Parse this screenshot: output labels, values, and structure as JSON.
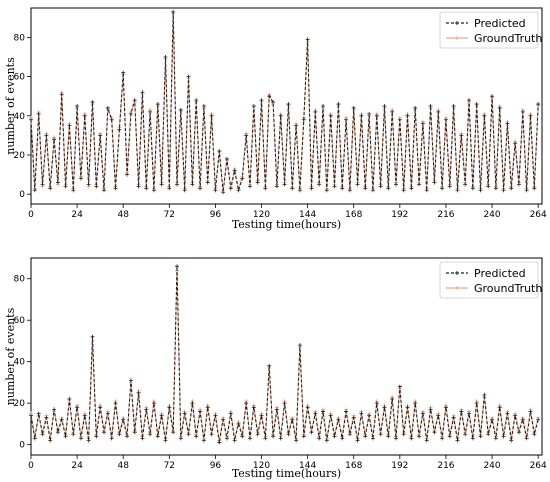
{
  "chart_data": [
    {
      "type": "line",
      "xlabel": "Testing time(hours)",
      "ylabel": "number of events",
      "xlim": [
        0,
        266
      ],
      "ylim": [
        -5,
        95
      ],
      "xticks": [
        0,
        24,
        48,
        72,
        96,
        120,
        144,
        168,
        192,
        216,
        240,
        264
      ],
      "yticks": [
        0,
        20,
        40,
        60,
        80
      ],
      "grid": false,
      "legend": "top-right",
      "series": [
        {
          "name": "Predicted",
          "color": "#222222",
          "style": "dashed-plus",
          "x": [
            0,
            2,
            4,
            6,
            8,
            10,
            12,
            14,
            16,
            18,
            20,
            22,
            24,
            26,
            28,
            30,
            32,
            34,
            36,
            38,
            40,
            42,
            44,
            46,
            48,
            50,
            52,
            54,
            56,
            58,
            60,
            62,
            64,
            66,
            68,
            70,
            72,
            74,
            76,
            78,
            80,
            82,
            84,
            86,
            88,
            90,
            92,
            94,
            96,
            98,
            100,
            102,
            104,
            106,
            108,
            110,
            112,
            114,
            116,
            118,
            120,
            122,
            124,
            126,
            128,
            130,
            132,
            134,
            136,
            138,
            140,
            142,
            144,
            146,
            148,
            150,
            152,
            154,
            156,
            158,
            160,
            162,
            164,
            166,
            168,
            170,
            172,
            174,
            176,
            178,
            180,
            182,
            184,
            186,
            188,
            190,
            192,
            194,
            196,
            198,
            200,
            202,
            204,
            206,
            208,
            210,
            212,
            214,
            216,
            218,
            220,
            222,
            224,
            226,
            228,
            230,
            232,
            234,
            236,
            238,
            240,
            242,
            244,
            246,
            248,
            250,
            252,
            254,
            256,
            258,
            260,
            262,
            264
          ],
          "values": [
            38,
            2,
            41,
            5,
            30,
            3,
            28,
            6,
            51,
            4,
            35,
            2,
            45,
            8,
            40,
            5,
            47,
            4,
            30,
            2,
            44,
            38,
            3,
            33,
            62,
            10,
            41,
            48,
            4,
            52,
            3,
            42,
            2,
            46,
            5,
            70,
            3,
            93,
            5,
            43,
            2,
            60,
            5,
            48,
            3,
            45,
            6,
            40,
            2,
            22,
            1,
            18,
            3,
            12,
            2,
            8,
            30,
            4,
            45,
            6,
            48,
            3,
            50,
            47,
            4,
            40,
            5,
            46,
            3,
            35,
            2,
            38,
            79,
            3,
            42,
            5,
            45,
            2,
            40,
            4,
            46,
            3,
            38,
            2,
            44,
            5,
            40,
            3,
            41,
            2,
            40,
            4,
            45,
            3,
            42,
            5,
            38,
            2,
            40,
            3,
            44,
            5,
            36,
            2,
            45,
            6,
            42,
            3,
            38,
            4,
            45,
            2,
            30,
            5,
            48,
            3,
            46,
            2,
            40,
            4,
            50,
            3,
            44,
            2,
            36,
            3,
            26,
            5,
            42,
            2,
            40,
            3,
            46
          ]
        },
        {
          "name": "GroundTruth",
          "color": "#f4a582",
          "style": "solid-plus",
          "x": [
            0,
            2,
            4,
            6,
            8,
            10,
            12,
            14,
            16,
            18,
            20,
            22,
            24,
            26,
            28,
            30,
            32,
            34,
            36,
            38,
            40,
            42,
            44,
            46,
            48,
            50,
            52,
            54,
            56,
            58,
            60,
            62,
            64,
            66,
            68,
            70,
            72,
            74,
            76,
            78,
            80,
            82,
            84,
            86,
            88,
            90,
            92,
            94,
            96,
            98,
            100,
            102,
            104,
            106,
            108,
            110,
            112,
            114,
            116,
            118,
            120,
            122,
            124,
            126,
            128,
            130,
            132,
            134,
            136,
            138,
            140,
            142,
            144,
            146,
            148,
            150,
            152,
            154,
            156,
            158,
            160,
            162,
            164,
            166,
            168,
            170,
            172,
            174,
            176,
            178,
            180,
            182,
            184,
            186,
            188,
            190,
            192,
            194,
            196,
            198,
            200,
            202,
            204,
            206,
            208,
            210,
            212,
            214,
            216,
            218,
            220,
            222,
            224,
            226,
            228,
            230,
            232,
            234,
            236,
            238,
            240,
            242,
            244,
            246,
            248,
            250,
            252,
            254,
            256,
            258,
            260,
            262,
            264
          ],
          "values": [
            39,
            3,
            42,
            4,
            31,
            4,
            29,
            5,
            52,
            5,
            36,
            3,
            44,
            9,
            41,
            4,
            46,
            5,
            31,
            3,
            43,
            39,
            4,
            34,
            61,
            11,
            42,
            47,
            5,
            51,
            4,
            43,
            3,
            45,
            6,
            69,
            4,
            92,
            6,
            42,
            3,
            59,
            6,
            47,
            4,
            44,
            7,
            41,
            3,
            21,
            2,
            17,
            4,
            13,
            3,
            9,
            31,
            5,
            44,
            7,
            47,
            4,
            51,
            46,
            5,
            41,
            6,
            45,
            4,
            36,
            3,
            39,
            78,
            4,
            43,
            6,
            44,
            3,
            41,
            5,
            45,
            4,
            39,
            3,
            43,
            6,
            41,
            4,
            40,
            3,
            41,
            5,
            44,
            4,
            43,
            6,
            39,
            3,
            41,
            4,
            43,
            6,
            37,
            3,
            44,
            7,
            43,
            4,
            39,
            5,
            44,
            3,
            31,
            6,
            47,
            4,
            45,
            3,
            41,
            5,
            49,
            4,
            45,
            3,
            37,
            4,
            27,
            6,
            43,
            3,
            41,
            4,
            45
          ]
        }
      ]
    },
    {
      "type": "line",
      "xlabel": "Testing time(hours)",
      "ylabel": "number of events",
      "xlim": [
        0,
        266
      ],
      "ylim": [
        -5,
        90
      ],
      "xticks": [
        0,
        24,
        48,
        72,
        96,
        120,
        144,
        168,
        192,
        216,
        240,
        264
      ],
      "yticks": [
        0,
        20,
        40,
        60,
        80
      ],
      "grid": false,
      "legend": "top-right",
      "series": [
        {
          "name": "Predicted",
          "color": "#222222",
          "style": "dashed-plus",
          "x": [
            0,
            2,
            4,
            6,
            8,
            10,
            12,
            14,
            16,
            18,
            20,
            22,
            24,
            26,
            28,
            30,
            32,
            34,
            36,
            38,
            40,
            42,
            44,
            46,
            48,
            50,
            52,
            54,
            56,
            58,
            60,
            62,
            64,
            66,
            68,
            70,
            72,
            74,
            76,
            78,
            80,
            82,
            84,
            86,
            88,
            90,
            92,
            94,
            96,
            98,
            100,
            102,
            104,
            106,
            108,
            110,
            112,
            114,
            116,
            118,
            120,
            122,
            124,
            126,
            128,
            130,
            132,
            134,
            136,
            138,
            140,
            142,
            144,
            146,
            148,
            150,
            152,
            154,
            156,
            158,
            160,
            162,
            164,
            166,
            168,
            170,
            172,
            174,
            176,
            178,
            180,
            182,
            184,
            186,
            188,
            190,
            192,
            194,
            196,
            198,
            200,
            202,
            204,
            206,
            208,
            210,
            212,
            214,
            216,
            218,
            220,
            222,
            224,
            226,
            228,
            230,
            232,
            234,
            236,
            238,
            240,
            242,
            244,
            246,
            248,
            250,
            252,
            254,
            256,
            258,
            260,
            262,
            264
          ],
          "values": [
            14,
            3,
            15,
            5,
            13,
            2,
            17,
            6,
            12,
            4,
            22,
            5,
            18,
            3,
            14,
            2,
            52,
            4,
            18,
            6,
            15,
            3,
            20,
            5,
            12,
            4,
            31,
            6,
            25,
            3,
            17,
            5,
            20,
            4,
            14,
            2,
            18,
            6,
            86,
            3,
            15,
            5,
            20,
            4,
            16,
            2,
            18,
            5,
            14,
            1,
            12,
            3,
            15,
            2,
            10,
            4,
            20,
            3,
            18,
            5,
            14,
            3,
            38,
            4,
            17,
            3,
            20,
            5,
            12,
            2,
            48,
            4,
            18,
            6,
            15,
            3,
            16,
            2,
            14,
            4,
            12,
            3,
            16,
            5,
            13,
            2,
            15,
            4,
            14,
            3,
            20,
            5,
            18,
            4,
            22,
            3,
            28,
            5,
            18,
            3,
            20,
            4,
            15,
            2,
            17,
            6,
            14,
            3,
            18,
            4,
            13,
            2,
            16,
            5,
            15,
            3,
            20,
            4,
            24,
            5,
            12,
            3,
            18,
            4,
            15,
            2,
            14,
            6,
            12,
            3,
            16,
            5,
            12
          ]
        },
        {
          "name": "GroundTruth",
          "color": "#f4a582",
          "style": "solid-plus",
          "x": [
            0,
            2,
            4,
            6,
            8,
            10,
            12,
            14,
            16,
            18,
            20,
            22,
            24,
            26,
            28,
            30,
            32,
            34,
            36,
            38,
            40,
            42,
            44,
            46,
            48,
            50,
            52,
            54,
            56,
            58,
            60,
            62,
            64,
            66,
            68,
            70,
            72,
            74,
            76,
            78,
            80,
            82,
            84,
            86,
            88,
            90,
            92,
            94,
            96,
            98,
            100,
            102,
            104,
            106,
            108,
            110,
            112,
            114,
            116,
            118,
            120,
            122,
            124,
            126,
            128,
            130,
            132,
            134,
            136,
            138,
            140,
            142,
            144,
            146,
            148,
            150,
            152,
            154,
            156,
            158,
            160,
            162,
            164,
            166,
            168,
            170,
            172,
            174,
            176,
            178,
            180,
            182,
            184,
            186,
            188,
            190,
            192,
            194,
            196,
            198,
            200,
            202,
            204,
            206,
            208,
            210,
            212,
            214,
            216,
            218,
            220,
            222,
            224,
            226,
            228,
            230,
            232,
            234,
            236,
            238,
            240,
            242,
            244,
            246,
            248,
            250,
            252,
            254,
            256,
            258,
            260,
            262,
            264
          ],
          "values": [
            15,
            4,
            14,
            6,
            14,
            3,
            16,
            7,
            13,
            5,
            21,
            6,
            19,
            4,
            15,
            3,
            50,
            5,
            19,
            7,
            16,
            4,
            21,
            6,
            13,
            5,
            30,
            7,
            26,
            4,
            18,
            6,
            21,
            5,
            15,
            3,
            19,
            7,
            84,
            4,
            16,
            6,
            21,
            5,
            17,
            3,
            19,
            6,
            15,
            2,
            13,
            4,
            16,
            3,
            11,
            5,
            21,
            4,
            19,
            6,
            15,
            4,
            37,
            5,
            18,
            4,
            21,
            6,
            13,
            3,
            47,
            5,
            19,
            7,
            16,
            4,
            17,
            3,
            15,
            5,
            13,
            4,
            17,
            6,
            14,
            3,
            16,
            5,
            15,
            4,
            21,
            6,
            19,
            5,
            23,
            4,
            27,
            6,
            19,
            4,
            21,
            5,
            16,
            3,
            18,
            7,
            15,
            4,
            19,
            5,
            14,
            3,
            17,
            6,
            16,
            4,
            21,
            5,
            23,
            6,
            13,
            4,
            19,
            5,
            16,
            3,
            15,
            7,
            13,
            4,
            17,
            6,
            13
          ]
        }
      ]
    }
  ]
}
